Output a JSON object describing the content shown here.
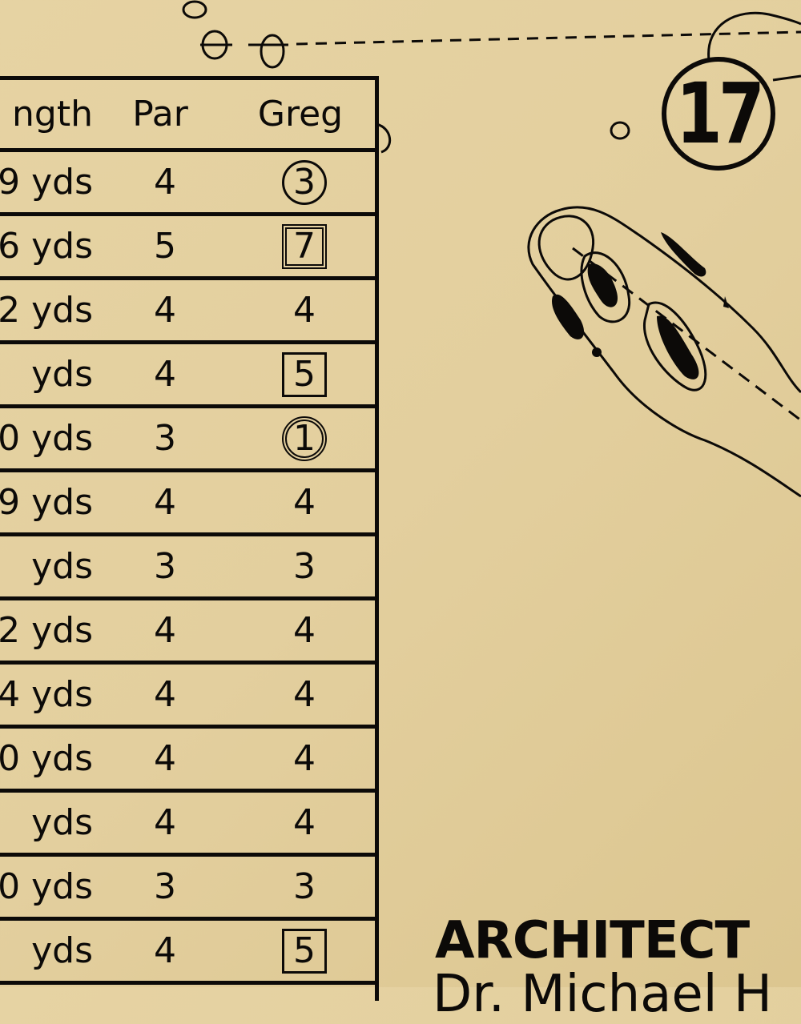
{
  "hole_badge": "17",
  "table": {
    "headers": {
      "length": "ngth",
      "par": "Par",
      "player": "Greg"
    },
    "rows": [
      {
        "length": "9 yds",
        "par": "4",
        "score": "3",
        "mark": "circle"
      },
      {
        "length": "6 yds",
        "par": "5",
        "score": "7",
        "mark": "double-square"
      },
      {
        "length": "2 yds",
        "par": "4",
        "score": "4",
        "mark": "none"
      },
      {
        "length": "yds",
        "par": "4",
        "score": "5",
        "mark": "square"
      },
      {
        "length": "0 yds",
        "par": "3",
        "score": "1",
        "mark": "double-circle"
      },
      {
        "length": "9 yds",
        "par": "4",
        "score": "4",
        "mark": "none"
      },
      {
        "length": "yds",
        "par": "3",
        "score": "3",
        "mark": "none"
      },
      {
        "length": "2 yds",
        "par": "4",
        "score": "4",
        "mark": "none"
      },
      {
        "length": "4 yds",
        "par": "4",
        "score": "4",
        "mark": "none"
      },
      {
        "length": "0 yds",
        "par": "4",
        "score": "4",
        "mark": "none"
      },
      {
        "length": "yds",
        "par": "4",
        "score": "4",
        "mark": "none"
      },
      {
        "length": "0 yds",
        "par": "3",
        "score": "3",
        "mark": "none"
      },
      {
        "length": "yds",
        "par": "4",
        "score": "5",
        "mark": "square"
      }
    ]
  },
  "architect": {
    "label": "ARCHITECT",
    "name": "Dr. Michael H"
  },
  "colors": {
    "paper": "#e3cf9e",
    "ink": "#0c0a08"
  }
}
